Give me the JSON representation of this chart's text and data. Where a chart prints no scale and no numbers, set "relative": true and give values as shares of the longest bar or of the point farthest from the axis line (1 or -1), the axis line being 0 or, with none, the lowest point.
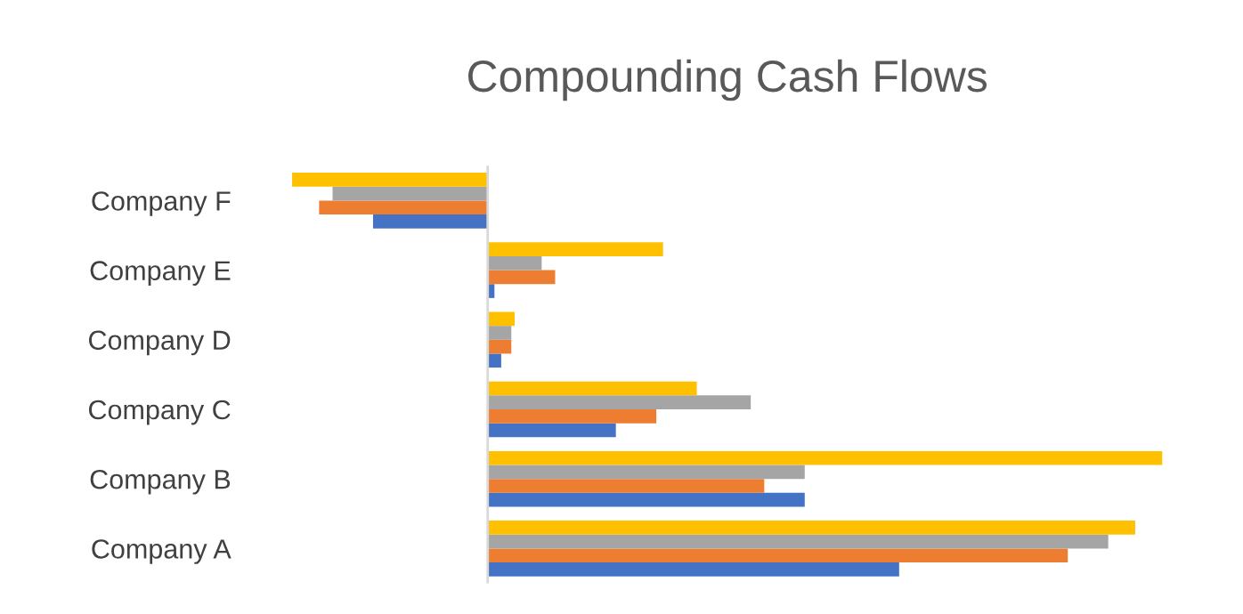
{
  "chart_data": {
    "type": "bar",
    "title": "Compounding Cash Flows",
    "orientation": "horizontal",
    "relative": true,
    "categories": [
      "Company F",
      "Company E",
      "Company D",
      "Company C",
      "Company B",
      "Company A"
    ],
    "series": [
      {
        "color": "#4472c4",
        "values": [
          -0.17,
          0.01,
          0.02,
          0.19,
          0.47,
          0.61
        ]
      },
      {
        "color": "#ed7d31",
        "values": [
          -0.25,
          0.1,
          0.035,
          0.25,
          0.41,
          0.86
        ]
      },
      {
        "color": "#a5a5a5",
        "values": [
          -0.23,
          0.08,
          0.035,
          0.39,
          0.47,
          0.92
        ]
      },
      {
        "color": "#ffc000",
        "values": [
          -0.29,
          0.26,
          0.04,
          0.31,
          1,
          0.96
        ]
      }
    ]
  }
}
